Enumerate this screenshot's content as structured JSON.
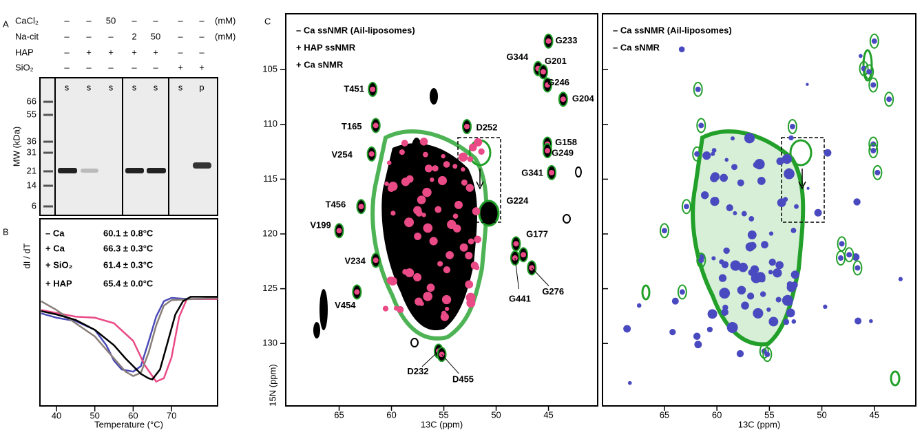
{
  "panel_a": {
    "label": "A",
    "rows": [
      {
        "label": "CaCl₂",
        "values": [
          "–",
          "–",
          "50",
          "–",
          "–",
          "–",
          "–"
        ],
        "unit": "(mM)"
      },
      {
        "label": "Na-cit",
        "values": [
          "–",
          "–",
          "–",
          "2",
          "50",
          "–",
          "–"
        ],
        "unit": "(mM)"
      },
      {
        "label": "HAP",
        "values": [
          "–",
          "+",
          "+",
          "+",
          "+",
          "–",
          "–"
        ]
      },
      {
        "label": "SiO₂",
        "values": [
          "–",
          "–",
          "–",
          "–",
          "–",
          "+",
          "+"
        ]
      }
    ],
    "lanes": [
      "s",
      "s",
      "s",
      "s",
      "s",
      "s",
      "p"
    ],
    "mw_ticks": [
      66,
      55,
      36,
      31,
      21,
      14,
      6
    ],
    "mw_label": "MW (kDa)"
  },
  "panel_b": {
    "label": "B",
    "ylabel": "dI / dT",
    "xlabel": "Temperature (°C)",
    "xlim": [
      35.7,
      82
    ],
    "ylim": [
      0,
      100
    ],
    "xticks": [
      40,
      50,
      60,
      70
    ],
    "series": [
      {
        "name": "– Ca",
        "value_label": "60.1 ± 0.8°C",
        "color": "#4a4ab8",
        "x": [
          36,
          40,
          45,
          50,
          53,
          55,
          57,
          60,
          62,
          64,
          66,
          68,
          70,
          74,
          82
        ],
        "values": [
          81,
          77,
          74,
          66,
          52,
          38,
          30,
          28,
          33,
          55,
          78,
          92,
          95,
          94,
          94
        ]
      },
      {
        "name": "+ Ca",
        "value_label": "66.3 ± 0.3°C",
        "color": "#ea4a86",
        "x": [
          36,
          45,
          50,
          55,
          60,
          63,
          66,
          68,
          70,
          72,
          74,
          82
        ],
        "values": [
          84,
          78,
          77,
          72,
          56,
          34,
          19,
          22,
          41,
          78,
          94,
          94
        ]
      },
      {
        "name": "+ SiO₂",
        "value_label": "61.4 ± 0.3°C",
        "color": "#8a7f7a",
        "x": [
          36,
          40,
          45,
          50,
          55,
          58,
          60,
          62,
          64,
          66,
          68,
          70,
          82
        ],
        "values": [
          92,
          84,
          72,
          60,
          40,
          28,
          24,
          27,
          45,
          70,
          88,
          93,
          95
        ]
      },
      {
        "name": "+ HAP",
        "value_label": "65.4 ± 0.0°C",
        "color": "#000000",
        "x": [
          36,
          40,
          45,
          50,
          55,
          58,
          62,
          64,
          65,
          67,
          69,
          71,
          73,
          75,
          82
        ],
        "values": [
          83,
          80,
          75,
          66,
          52,
          40,
          26,
          22,
          21,
          30,
          55,
          80,
          92,
          96,
          96
        ]
      }
    ]
  },
  "panel_c": {
    "label": "C",
    "ylabel": "15N (ppm)",
    "ylim": [
      99.9,
      135.7
    ],
    "yticks": [
      105,
      110,
      115,
      120,
      125,
      130
    ],
    "left": {
      "xlabel": "13C (ppm)",
      "xlim": [
        70.1,
        40.3
      ],
      "xticks": [
        65,
        60,
        55,
        50,
        45
      ],
      "legend": [
        {
          "text": "– Ca ssNMR (Ail-liposomes)",
          "color": "#22a02a"
        },
        {
          "text": "+ HAP ssNMR",
          "color": "#000000"
        },
        {
          "text": "+ Ca sNMR",
          "color": "#ea4a86"
        }
      ],
      "peaks": [
        {
          "label": "G233",
          "x": 45.0,
          "y": 102.4
        },
        {
          "label": "G344",
          "x": 46.0,
          "y": 104.9
        },
        {
          "label": "G201",
          "x": 45.5,
          "y": 105.2
        },
        {
          "label": "G246",
          "x": 45.1,
          "y": 106.4
        },
        {
          "label": "G204",
          "x": 43.6,
          "y": 107.7
        },
        {
          "label": "D252",
          "x": 52.8,
          "y": 110.2
        },
        {
          "label": "G158",
          "x": 45.1,
          "y": 111.8
        },
        {
          "label": "G249",
          "x": 45.1,
          "y": 112.4
        },
        {
          "label": "G341",
          "x": 44.7,
          "y": 114.4
        },
        {
          "label": "T451",
          "x": 61.8,
          "y": 106.8
        },
        {
          "label": "T165",
          "x": 61.5,
          "y": 110.1
        },
        {
          "label": "V254",
          "x": 61.9,
          "y": 112.7
        },
        {
          "label": "T456",
          "x": 62.9,
          "y": 117.5
        },
        {
          "label": "V199",
          "x": 65.0,
          "y": 119.7
        },
        {
          "label": "V234",
          "x": 61.5,
          "y": 122.4
        },
        {
          "label": "V454",
          "x": 63.3,
          "y": 125.3
        },
        {
          "label": "G224",
          "x": 48.1,
          "y": 120.9
        },
        {
          "label": "G177",
          "x": 47.4,
          "y": 121.9
        },
        {
          "label": "G441",
          "x": 48.2,
          "y": 122.2
        },
        {
          "label": "G276",
          "x": 46.6,
          "y": 123.1
        },
        {
          "label": "D232",
          "x": 55.5,
          "y": 130.7
        },
        {
          "label": "D455",
          "x": 55.2,
          "y": 131.0
        }
      ]
    },
    "right": {
      "xlabel": "13C (ppm)",
      "xlim": [
        70.9,
        41.05
      ],
      "xticks": [
        65,
        60,
        55,
        50,
        45
      ],
      "legend": [
        {
          "text": "– Ca ssNMR (Ail-liposomes)",
          "color": "#22a02a"
        },
        {
          "text": "– Ca sNMR",
          "color": "#4a4ac0"
        }
      ]
    }
  }
}
